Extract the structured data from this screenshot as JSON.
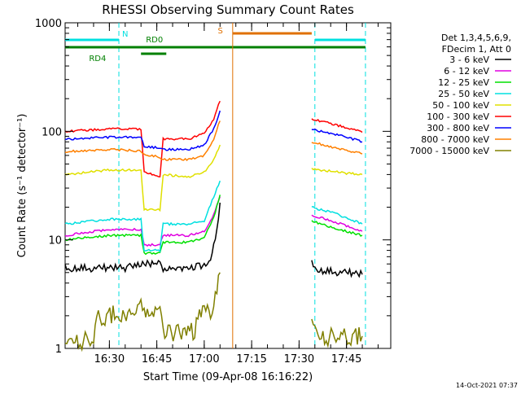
{
  "chart_data": {
    "type": "line",
    "title": "RHESSI Observing Summary Count Rates",
    "xlabel": "Start Time (09-Apr-08 16:16:22)",
    "ylabel": "Count Rate (s⁻¹ detector⁻¹)",
    "y_scale": "log",
    "ylim": [
      1,
      1000
    ],
    "y_ticks": [
      "1",
      "10",
      "100",
      "1000"
    ],
    "x_range": [
      "16:16",
      "17:59"
    ],
    "x_ticks": [
      "16:30",
      "16:45",
      "17:00",
      "17:15",
      "17:30",
      "17:45"
    ],
    "timestamp": "14-Oct-2021 07:37",
    "legend": {
      "position": "right",
      "header": [
        "Det 1,3,4,5,6,9,",
        "FDecim 1, Att 0"
      ]
    },
    "series": [
      {
        "name": "3 - 6 keV",
        "color": "#000000",
        "data": [
          [
            "16:16",
            5.5
          ],
          [
            "16:35",
            5.5
          ],
          [
            "16:41",
            6
          ],
          [
            "16:46",
            6
          ],
          [
            "16:47",
            5.5
          ],
          [
            "16:55",
            5.5
          ],
          [
            "17:00",
            5.8
          ],
          [
            "17:02",
            6.5
          ],
          [
            "17:04",
            12
          ],
          [
            "17:05",
            22
          ],
          null,
          [
            "17:34",
            6
          ],
          [
            "17:37",
            5.2
          ],
          [
            "17:45",
            5.0
          ],
          [
            "17:50",
            4.8
          ]
        ]
      },
      {
        "name": "6 - 12 keV",
        "color": "#e000e0",
        "data": [
          [
            "16:16",
            11
          ],
          [
            "16:30",
            12.5
          ],
          [
            "16:40",
            12.5
          ],
          [
            "16:41",
            9
          ],
          [
            "16:46",
            9
          ],
          [
            "16:47",
            11
          ],
          [
            "16:55",
            11
          ],
          [
            "17:00",
            12
          ],
          [
            "17:03",
            17
          ],
          [
            "17:05",
            25
          ],
          null,
          [
            "17:34",
            17
          ],
          [
            "17:40",
            15
          ],
          [
            "17:45",
            13.5
          ],
          [
            "17:50",
            12
          ]
        ]
      },
      {
        "name": "12 - 25 keV",
        "color": "#00e000",
        "data": [
          [
            "16:16",
            10
          ],
          [
            "16:30",
            11
          ],
          [
            "16:40",
            11
          ],
          [
            "16:41",
            7.5
          ],
          [
            "16:46",
            7.5
          ],
          [
            "16:47",
            9.5
          ],
          [
            "16:55",
            9.5
          ],
          [
            "17:00",
            10.5
          ],
          [
            "17:03",
            16
          ],
          [
            "17:05",
            26
          ],
          null,
          [
            "17:34",
            15
          ],
          [
            "17:40",
            13
          ],
          [
            "17:45",
            12
          ],
          [
            "17:50",
            11
          ]
        ]
      },
      {
        "name": "25 - 50 keV",
        "color": "#00e0e0",
        "data": [
          [
            "16:16",
            14
          ],
          [
            "16:30",
            15.5
          ],
          [
            "16:40",
            15.5
          ],
          [
            "16:41",
            8
          ],
          [
            "16:46",
            8
          ],
          [
            "16:47",
            14
          ],
          [
            "16:55",
            14
          ],
          [
            "17:00",
            15
          ],
          [
            "17:03",
            25
          ],
          [
            "17:05",
            35
          ],
          null,
          [
            "17:34",
            20
          ],
          [
            "17:40",
            18
          ],
          [
            "17:45",
            16
          ],
          [
            "17:50",
            14
          ]
        ]
      },
      {
        "name": "50 - 100 keV",
        "color": "#e0e000",
        "data": [
          [
            "16:16",
            40
          ],
          [
            "16:30",
            44
          ],
          [
            "16:40",
            44
          ],
          [
            "16:41",
            19
          ],
          [
            "16:46",
            19
          ],
          [
            "16:47",
            40
          ],
          [
            "16:55",
            38
          ],
          [
            "17:00",
            42
          ],
          [
            "17:03",
            55
          ],
          [
            "17:05",
            75
          ],
          null,
          [
            "17:34",
            45
          ],
          [
            "17:40",
            43
          ],
          [
            "17:45",
            41
          ],
          [
            "17:50",
            40
          ]
        ]
      },
      {
        "name": "100 - 300 keV",
        "color": "#ff0000",
        "data": [
          [
            "16:16",
            100
          ],
          [
            "16:30",
            105
          ],
          [
            "16:40",
            105
          ],
          [
            "16:41",
            42
          ],
          [
            "16:46",
            38
          ],
          [
            "16:47",
            85
          ],
          [
            "16:55",
            85
          ],
          [
            "17:00",
            95
          ],
          [
            "17:03",
            130
          ],
          [
            "17:05",
            190
          ],
          null,
          [
            "17:34",
            130
          ],
          [
            "17:40",
            118
          ],
          [
            "17:45",
            108
          ],
          [
            "17:50",
            98
          ]
        ]
      },
      {
        "name": "300 - 800 keV",
        "color": "#0000ff",
        "data": [
          [
            "16:16",
            85
          ],
          [
            "16:30",
            88
          ],
          [
            "16:40",
            88
          ],
          [
            "16:41",
            73
          ],
          [
            "16:46",
            70
          ],
          [
            "16:47",
            68
          ],
          [
            "16:55",
            68
          ],
          [
            "17:00",
            75
          ],
          [
            "17:03",
            105
          ],
          [
            "17:05",
            155
          ],
          null,
          [
            "17:34",
            105
          ],
          [
            "17:40",
            96
          ],
          [
            "17:45",
            88
          ],
          [
            "17:50",
            80
          ]
        ]
      },
      {
        "name": "800 - 7000 keV",
        "color": "#ff8000",
        "data": [
          [
            "16:16",
            65
          ],
          [
            "16:30",
            68
          ],
          [
            "16:40",
            66
          ],
          [
            "16:41",
            61
          ],
          [
            "16:46",
            58
          ],
          [
            "16:47",
            55
          ],
          [
            "16:55",
            55
          ],
          [
            "17:00",
            60
          ],
          [
            "17:03",
            85
          ],
          [
            "17:05",
            125
          ],
          null,
          [
            "17:34",
            80
          ],
          [
            "17:40",
            72
          ],
          [
            "17:45",
            67
          ],
          [
            "17:50",
            62
          ]
        ]
      },
      {
        "name": "7000 - 15000 keV",
        "color": "#808000",
        "data": [
          [
            "16:16",
            1.2
          ],
          [
            "16:25",
            1.2
          ],
          [
            "16:26",
            1.9
          ],
          [
            "16:41",
            2.4
          ],
          [
            "16:46",
            2.2
          ],
          [
            "16:47",
            1.4
          ],
          [
            "16:57",
            1.4
          ],
          [
            "16:58",
            1.9
          ],
          [
            "17:03",
            2.3
          ],
          [
            "17:05",
            5
          ],
          null,
          [
            "17:34",
            2
          ],
          [
            "17:36",
            1.3
          ],
          [
            "17:50",
            1.3
          ]
        ]
      }
    ],
    "annotations": [
      {
        "label": "N",
        "color": "#00e0e0",
        "bars": [
          [
            "16:16",
            "16:33"
          ],
          [
            "17:35",
            "17:51"
          ]
        ],
        "dashed_times": [
          "16:33",
          "17:35",
          "17:51"
        ]
      },
      {
        "label": "RD0",
        "color": "#008000",
        "bars": [
          [
            "16:16",
            "17:51"
          ]
        ]
      },
      {
        "label": "RD4",
        "color": "#008000",
        "bars": [
          [
            "16:40",
            "16:48"
          ]
        ]
      },
      {
        "label": "S",
        "color": "#e07000",
        "bars": [
          [
            "17:09",
            "17:34"
          ]
        ],
        "solid_times": [
          "17:09"
        ]
      }
    ]
  }
}
